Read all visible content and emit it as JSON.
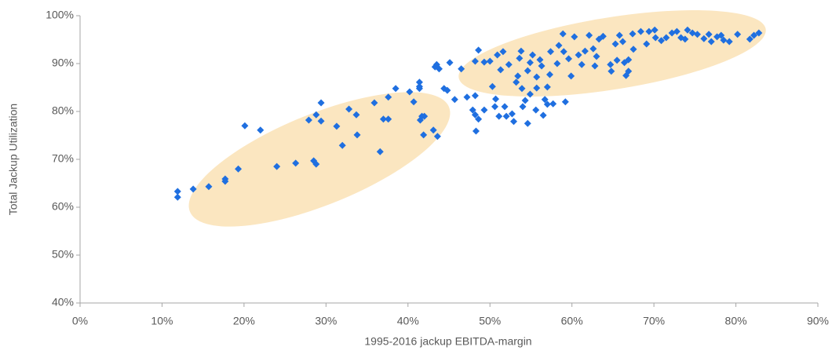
{
  "chart_data": {
    "type": "scatter",
    "xlabel": "1995-2016 jackup EBITDA-margin",
    "ylabel": "Total Jackup Utilization",
    "color": "#1f6fe0",
    "xlim": [
      0,
      90
    ],
    "ylim": [
      40,
      100
    ],
    "xticks": [
      {
        "value": 0,
        "label": "0%"
      },
      {
        "value": 10,
        "label": "10%"
      },
      {
        "value": 20,
        "label": "20%"
      },
      {
        "value": 30,
        "label": "30%"
      },
      {
        "value": 40,
        "label": "40%"
      },
      {
        "value": 50,
        "label": "50%"
      },
      {
        "value": 60,
        "label": "60%"
      },
      {
        "value": 70,
        "label": "70%"
      },
      {
        "value": 80,
        "label": "80%"
      },
      {
        "value": 90,
        "label": "90%"
      }
    ],
    "yticks": [
      {
        "value": 40,
        "label": "40%"
      },
      {
        "value": 50,
        "label": "50%"
      },
      {
        "value": 60,
        "label": "60%"
      },
      {
        "value": 70,
        "label": "70%"
      },
      {
        "value": 80,
        "label": "80%"
      },
      {
        "value": 90,
        "label": "90%"
      },
      {
        "value": 100,
        "label": "100%"
      }
    ],
    "x": [
      11.9,
      11.9,
      13.8,
      15.7,
      17.7,
      17.7,
      19.3,
      20.1,
      22.0,
      24.0,
      26.3,
      27.9,
      28.5,
      28.8,
      28.8,
      29.4,
      29.4,
      31.3,
      32.0,
      32.8,
      33.7,
      33.8,
      35.9,
      36.6,
      37.0,
      37.6,
      37.6,
      38.5,
      40.2,
      40.7,
      41.4,
      41.4,
      41.4,
      41.5,
      41.7,
      41.9,
      42.0,
      43.1,
      43.6,
      43.3,
      43.5,
      43.8,
      44.4,
      44.8,
      45.1,
      45.7,
      46.5,
      47.2,
      47.9,
      48.2,
      48.2,
      48.3,
      48.6,
      48.2,
      48.6,
      49.3,
      50.0,
      49.3,
      50.3,
      50.7,
      50.6,
      50.9,
      51.1,
      51.3,
      51.6,
      51.8,
      52.0,
      52.3,
      52.7,
      52.9,
      53.2,
      53.4,
      53.6,
      53.8,
      53.9,
      54.0,
      54.3,
      54.6,
      54.6,
      54.9,
      54.9,
      55.2,
      55.6,
      55.7,
      55.7,
      56.1,
      56.3,
      56.5,
      56.7,
      57.0,
      57.0,
      57.3,
      57.4,
      57.7,
      58.2,
      58.4,
      58.9,
      59.0,
      59.2,
      59.6,
      59.9,
      60.3,
      60.8,
      61.2,
      61.6,
      62.1,
      62.6,
      62.8,
      63.0,
      63.3,
      63.8,
      64.7,
      64.8,
      65.3,
      65.5,
      65.8,
      66.2,
      66.4,
      66.6,
      66.9,
      66.9,
      67.4,
      67.5,
      68.4,
      69.1,
      69.4,
      70.1,
      70.2,
      70.9,
      71.5,
      72.2,
      72.8,
      73.3,
      73.8,
      74.1,
      74.7,
      75.3,
      76.1,
      76.7,
      77.0,
      77.7,
      78.2,
      78.5,
      79.2,
      80.2,
      81.7,
      82.2,
      82.8
    ],
    "y": [
      63.3,
      62.1,
      63.8,
      64.3,
      65.9,
      65.4,
      68.0,
      77.0,
      76.1,
      68.5,
      69.2,
      78.2,
      69.7,
      69.0,
      79.3,
      81.8,
      78.0,
      76.9,
      72.9,
      80.5,
      79.3,
      75.1,
      81.8,
      71.6,
      78.4,
      78.4,
      83.0,
      84.8,
      84.1,
      82.0,
      86.1,
      85.2,
      84.8,
      78.2,
      79.0,
      75.1,
      79.0,
      76.1,
      74.8,
      89.3,
      89.8,
      88.9,
      84.8,
      84.4,
      90.2,
      82.5,
      88.9,
      83.0,
      80.3,
      79.3,
      83.3,
      75.9,
      78.4,
      90.5,
      92.8,
      90.3,
      90.5,
      80.3,
      85.2,
      82.6,
      81.0,
      91.8,
      79.0,
      88.7,
      92.5,
      81.0,
      79.0,
      89.8,
      79.5,
      77.9,
      86.1,
      87.4,
      91.1,
      92.6,
      84.8,
      81.0,
      82.3,
      88.5,
      77.5,
      90.2,
      83.6,
      91.8,
      80.3,
      87.2,
      84.9,
      90.8,
      89.5,
      79.2,
      82.5,
      85.1,
      81.5,
      87.7,
      92.5,
      81.6,
      90.0,
      93.8,
      96.2,
      92.5,
      82.0,
      91.0,
      87.4,
      95.6,
      91.8,
      89.8,
      92.6,
      95.9,
      93.1,
      89.5,
      91.5,
      95.1,
      95.7,
      89.8,
      88.4,
      94.1,
      90.7,
      95.9,
      94.6,
      90.2,
      87.5,
      88.4,
      90.8,
      96.2,
      93.0,
      96.7,
      94.1,
      96.7,
      97.0,
      95.4,
      94.8,
      95.4,
      96.4,
      96.7,
      95.4,
      95.1,
      97.0,
      96.4,
      96.1,
      95.2,
      96.1,
      94.6,
      95.6,
      95.9,
      94.9,
      94.6,
      96.1,
      95.1,
      95.9,
      96.4
    ]
  }
}
